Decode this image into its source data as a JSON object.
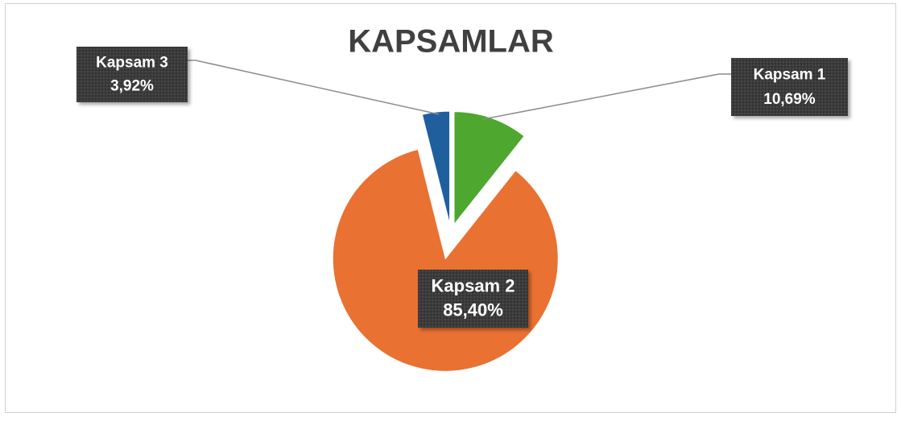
{
  "chart_data": {
    "type": "pie",
    "title": "KAPSAMLAR",
    "categories": [
      "Kapsam 1",
      "Kapsam 2",
      "Kapsam 3"
    ],
    "values": [
      10.69,
      85.4,
      3.92
    ],
    "value_labels": [
      "10,69%",
      "85,40%",
      "3,92%"
    ],
    "colors": [
      "#4ea72e",
      "#e97132",
      "#1f5f9e"
    ]
  }
}
